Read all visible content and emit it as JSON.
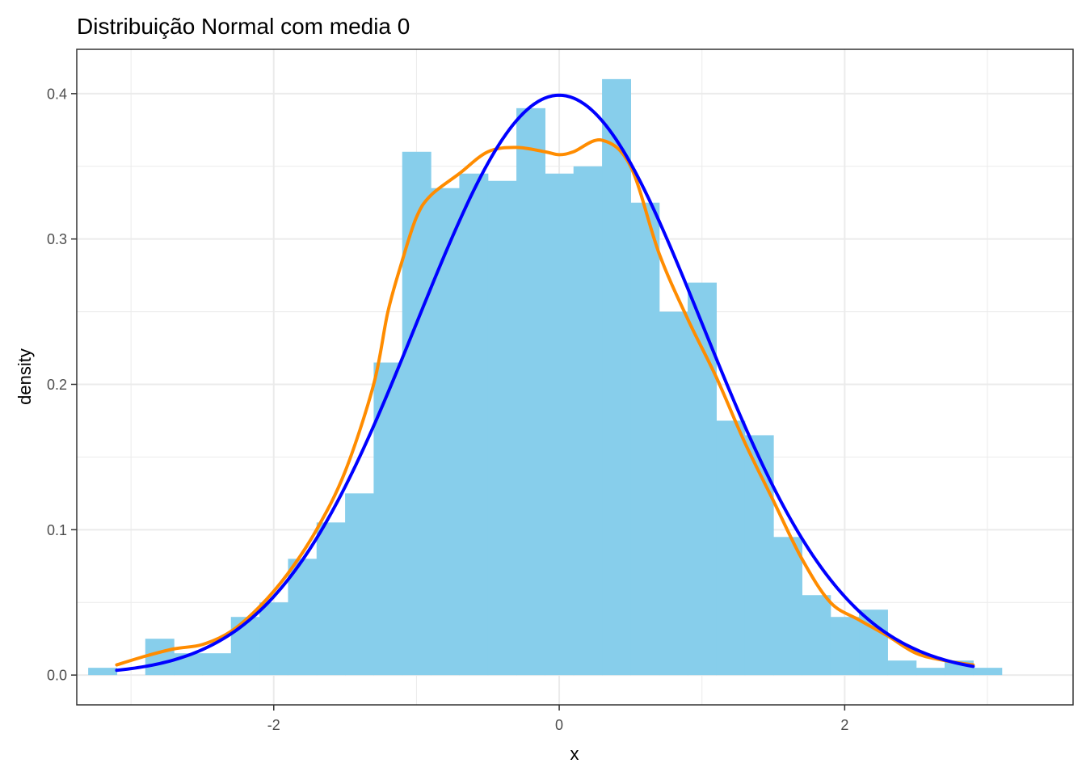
{
  "chart_data": {
    "type": "histogram",
    "title": "Distribuição Normal com media 0",
    "xlabel": "x",
    "ylabel": "density",
    "xlim": [
      -3.38,
      3.6
    ],
    "ylim": [
      -0.0205,
      0.4305
    ],
    "x_ticks": [
      -2,
      0,
      2
    ],
    "x_tick_labels": [
      "-2",
      "0",
      "2"
    ],
    "y_ticks": [
      0.0,
      0.1,
      0.2,
      0.3,
      0.4
    ],
    "y_tick_labels": [
      "0.0",
      "0.1",
      "0.2",
      "0.3",
      "0.4"
    ],
    "grid": true,
    "colors": {
      "bars": "#87CEEB",
      "empirical_density": "#FF8C00",
      "normal_density": "#0000FF",
      "grid": "#ebebeb",
      "panel_border": "#333333"
    },
    "bin_width": 0.2,
    "histogram": [
      {
        "x0": -3.3,
        "x1": -3.1,
        "density": 0.005
      },
      {
        "x0": -3.1,
        "x1": -2.9,
        "density": 0.0
      },
      {
        "x0": -2.9,
        "x1": -2.7,
        "density": 0.025
      },
      {
        "x0": -2.7,
        "x1": -2.5,
        "density": 0.015
      },
      {
        "x0": -2.5,
        "x1": -2.3,
        "density": 0.015
      },
      {
        "x0": -2.3,
        "x1": -2.1,
        "density": 0.04
      },
      {
        "x0": -2.1,
        "x1": -1.9,
        "density": 0.05
      },
      {
        "x0": -1.9,
        "x1": -1.7,
        "density": 0.08
      },
      {
        "x0": -1.7,
        "x1": -1.5,
        "density": 0.105
      },
      {
        "x0": -1.5,
        "x1": -1.3,
        "density": 0.125
      },
      {
        "x0": -1.3,
        "x1": -1.1,
        "density": 0.215
      },
      {
        "x0": -1.1,
        "x1": -0.9,
        "density": 0.36
      },
      {
        "x0": -0.9,
        "x1": -0.7,
        "density": 0.335
      },
      {
        "x0": -0.7,
        "x1": -0.5,
        "density": 0.345
      },
      {
        "x0": -0.5,
        "x1": -0.3,
        "density": 0.34
      },
      {
        "x0": -0.3,
        "x1": -0.1,
        "density": 0.39
      },
      {
        "x0": -0.1,
        "x1": 0.1,
        "density": 0.345
      },
      {
        "x0": 0.1,
        "x1": 0.3,
        "density": 0.35
      },
      {
        "x0": 0.3,
        "x1": 0.5,
        "density": 0.41
      },
      {
        "x0": 0.5,
        "x1": 0.7,
        "density": 0.325
      },
      {
        "x0": 0.7,
        "x1": 0.9,
        "density": 0.25
      },
      {
        "x0": 0.9,
        "x1": 1.1,
        "density": 0.27
      },
      {
        "x0": 1.1,
        "x1": 1.3,
        "density": 0.175
      },
      {
        "x0": 1.3,
        "x1": 1.5,
        "density": 0.165
      },
      {
        "x0": 1.5,
        "x1": 1.7,
        "density": 0.095
      },
      {
        "x0": 1.7,
        "x1": 1.9,
        "density": 0.055
      },
      {
        "x0": 1.9,
        "x1": 2.1,
        "density": 0.04
      },
      {
        "x0": 2.1,
        "x1": 2.3,
        "density": 0.045
      },
      {
        "x0": 2.3,
        "x1": 2.5,
        "density": 0.01
      },
      {
        "x0": 2.5,
        "x1": 2.7,
        "density": 0.005
      },
      {
        "x0": 2.7,
        "x1": 2.9,
        "density": 0.01
      },
      {
        "x0": 2.9,
        "x1": 3.1,
        "density": 0.005
      }
    ],
    "series": [
      {
        "kind": "empirical-density",
        "x": [
          -3.1,
          -2.9,
          -2.7,
          -2.5,
          -2.3,
          -2.1,
          -1.9,
          -1.7,
          -1.5,
          -1.3,
          -1.2,
          -1.1,
          -1.0,
          -0.9,
          -0.7,
          -0.5,
          -0.3,
          -0.1,
          0.0,
          0.1,
          0.3,
          0.5,
          0.7,
          0.9,
          1.1,
          1.3,
          1.5,
          1.7,
          1.9,
          2.1,
          2.3,
          2.5,
          2.7,
          2.9
        ],
        "y": [
          0.007,
          0.013,
          0.018,
          0.021,
          0.03,
          0.047,
          0.07,
          0.1,
          0.14,
          0.2,
          0.25,
          0.285,
          0.315,
          0.33,
          0.345,
          0.36,
          0.363,
          0.36,
          0.358,
          0.36,
          0.368,
          0.35,
          0.29,
          0.245,
          0.205,
          0.16,
          0.12,
          0.08,
          0.05,
          0.038,
          0.027,
          0.015,
          0.01,
          0.007
        ]
      },
      {
        "kind": "normal-density",
        "mean": 0,
        "sd": 1,
        "x_range": [
          -3.1,
          2.9
        ]
      }
    ]
  }
}
